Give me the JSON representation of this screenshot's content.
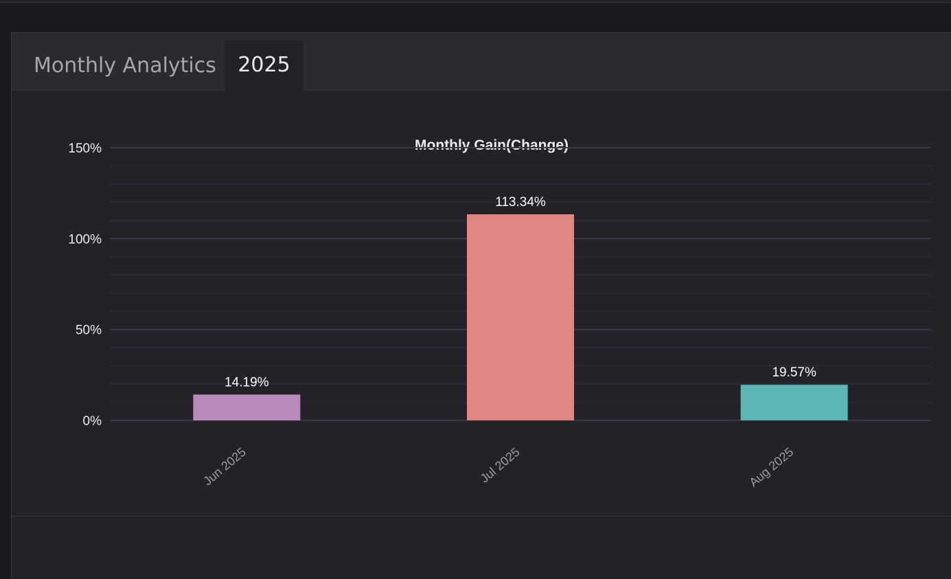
{
  "tabs": [
    {
      "label": "Monthly Analytics",
      "active": false
    },
    {
      "label": "2025",
      "active": true
    }
  ],
  "chart_data": {
    "type": "bar",
    "title": "Monthly Gain(Change)",
    "xlabel": "",
    "ylabel": "",
    "categories": [
      "Jun 2025",
      "Jul 2025",
      "Aug 2025"
    ],
    "values": [
      14.19,
      113.34,
      19.57
    ],
    "value_labels": [
      "14.19%",
      "113.34%",
      "19.57%"
    ],
    "bar_colors": [
      "#b98ab9",
      "#e08784",
      "#5db5b4"
    ],
    "ylim": [
      0,
      150
    ],
    "yticks": [
      0,
      50,
      100,
      150
    ],
    "ytick_labels": [
      "0%",
      "50%",
      "100%",
      "150%"
    ],
    "minor_step": 10,
    "grid": true,
    "legend": "none"
  },
  "colors": {
    "background": "#1b1a20",
    "card": "#232228",
    "tab_bar": "#2b2a31",
    "grid_major": "#3b3a42",
    "grid_minor": "#2e2d34",
    "text": "#ececec",
    "muted_text": "#a6a6aa"
  }
}
